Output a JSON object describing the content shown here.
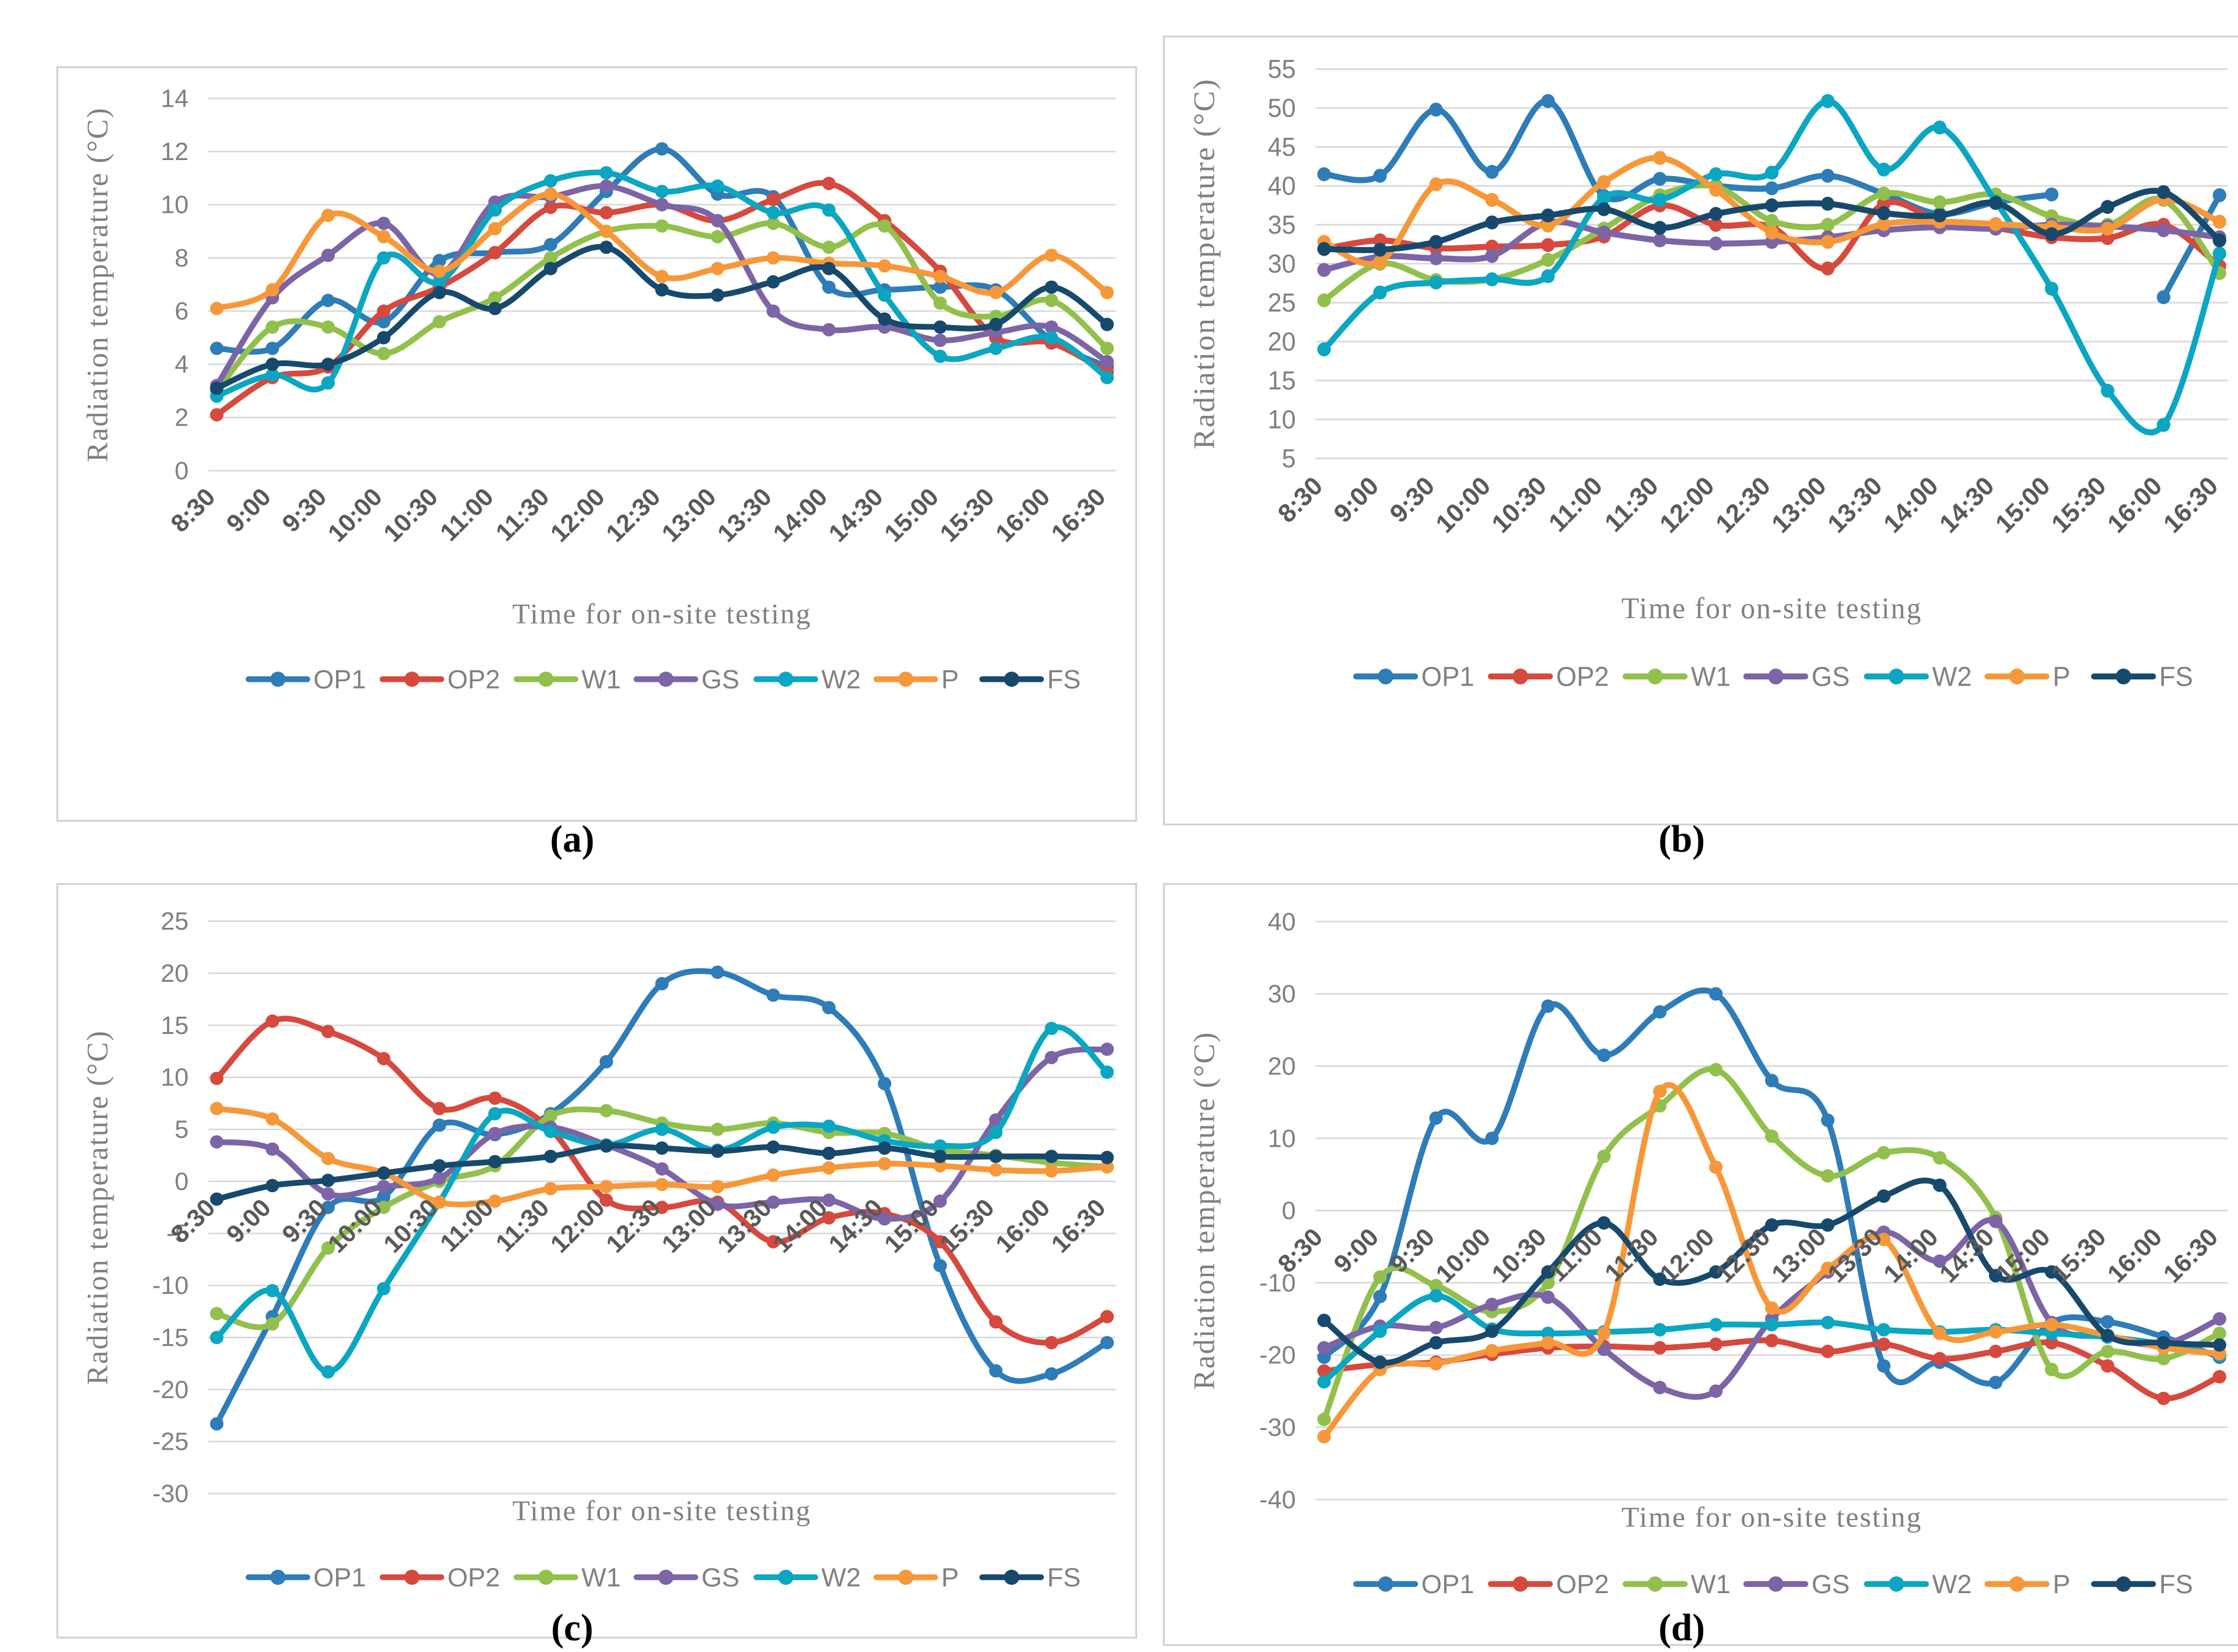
{
  "figure": {
    "ylabel": "Radiation temperature (°C)",
    "xlabel": "Time for on-site testing",
    "legend": [
      "OP1",
      "OP2",
      "W1",
      "GS",
      "W2",
      "P",
      "FS"
    ],
    "palette": {
      "OP1": "#2e7cb8",
      "OP2": "#d6493e",
      "W1": "#92c04c",
      "GS": "#7c64a6",
      "W2": "#0ba6c1",
      "P": "#f6983a",
      "FS": "#17496d"
    },
    "theme": {
      "grid": "#d9d9d9",
      "ytick_text": "#7f7f7f",
      "xtick_text": "#595959",
      "axis_title_text": "#7f7f7f",
      "legend_text": "#808080",
      "panel_border": "#d2d2d2",
      "caption_text": "#000000",
      "background": "#ffffff"
    }
  },
  "chart_data": [
    {
      "type": "line",
      "title": "(a)",
      "xlabel": "Time for on-site testing",
      "ylabel": "Radiation temperature (°C)",
      "ylim": [
        0,
        14
      ],
      "ytick_step": 2,
      "grid": true,
      "smoothed": true,
      "markers": true,
      "legend_position": "bottom",
      "x_labels_at": "below",
      "x": [
        "8:30",
        "9:00",
        "9:30",
        "10:00",
        "10:30",
        "11:00",
        "11:30",
        "12:00",
        "12:30",
        "13:00",
        "13:30",
        "14:00",
        "14:30",
        "15:00",
        "15:30",
        "16:00",
        "16:30"
      ],
      "series": [
        {
          "name": "OP1",
          "color": "#2e7cb8",
          "values": [
            4.6,
            4.6,
            6.4,
            5.6,
            7.9,
            8.2,
            8.5,
            10.5,
            12.1,
            10.4,
            10.3,
            6.9,
            6.8,
            6.9,
            6.8,
            4.9,
            3.9
          ]
        },
        {
          "name": "OP2",
          "color": "#d6493e",
          "values": [
            2.1,
            3.5,
            3.9,
            6.0,
            6.9,
            8.2,
            9.9,
            9.7,
            10.0,
            9.4,
            10.2,
            10.8,
            9.4,
            7.5,
            5.0,
            4.8,
            3.7
          ]
        },
        {
          "name": "W1",
          "color": "#92c04c",
          "values": [
            3.0,
            5.4,
            5.4,
            4.4,
            5.6,
            6.5,
            8.0,
            9.0,
            9.2,
            8.8,
            9.3,
            8.4,
            9.2,
            6.3,
            5.8,
            6.4,
            4.6
          ]
        },
        {
          "name": "GS",
          "color": "#7c64a6",
          "values": [
            3.2,
            6.5,
            8.1,
            9.3,
            7.4,
            10.1,
            10.3,
            10.7,
            10.0,
            9.4,
            6.0,
            5.3,
            5.4,
            4.9,
            5.2,
            5.4,
            4.1
          ]
        },
        {
          "name": "W2",
          "color": "#0ba6c1",
          "values": [
            2.8,
            3.6,
            3.3,
            8.0,
            7.1,
            9.8,
            10.9,
            11.2,
            10.5,
            10.7,
            9.7,
            9.8,
            6.6,
            4.3,
            4.6,
            5.0,
            3.5
          ]
        },
        {
          "name": "P",
          "color": "#f6983a",
          "values": [
            6.1,
            6.8,
            9.6,
            8.8,
            7.5,
            9.1,
            10.4,
            9.0,
            7.3,
            7.6,
            8.0,
            7.8,
            7.7,
            7.3,
            6.7,
            8.1,
            6.7
          ]
        },
        {
          "name": "FS",
          "color": "#17496d",
          "values": [
            3.1,
            4.0,
            4.0,
            5.0,
            6.7,
            6.1,
            7.6,
            8.4,
            6.8,
            6.6,
            7.1,
            7.6,
            5.7,
            5.4,
            5.5,
            6.9,
            5.5
          ]
        }
      ]
    },
    {
      "type": "line",
      "title": "(b)",
      "xlabel": "Time for on-site testing",
      "ylabel": "Radiation temperature (°C)",
      "ylim": [
        5,
        55
      ],
      "ytick_step": 5,
      "grid": true,
      "smoothed": true,
      "markers": true,
      "legend_position": "bottom",
      "x_labels_at": "below",
      "x": [
        "8:30",
        "9:00",
        "9:30",
        "10:00",
        "10:30",
        "11:00",
        "11:30",
        "12:00",
        "12:30",
        "13:00",
        "13:30",
        "14:00",
        "14:30",
        "15:00",
        "15:30",
        "16:00",
        "16:30"
      ],
      "series": [
        {
          "name": "OP1",
          "color": "#2e7cb8",
          "values": [
            41.5,
            41.3,
            49.8,
            41.8,
            50.9,
            38.7,
            40.9,
            40.0,
            39.7,
            41.3,
            39.0,
            36.4,
            37.9,
            38.9,
            null,
            25.7,
            38.8
          ]
        },
        {
          "name": "OP2",
          "color": "#d6493e",
          "values": [
            31.9,
            33.0,
            32.0,
            32.2,
            32.4,
            33.5,
            37.5,
            35.0,
            34.7,
            29.4,
            37.7,
            35.5,
            34.6,
            33.4,
            33.3,
            35.0,
            29.7
          ]
        },
        {
          "name": "W1",
          "color": "#92c04c",
          "values": [
            25.3,
            30.0,
            27.9,
            28.0,
            30.5,
            34.5,
            38.8,
            39.9,
            35.5,
            35.0,
            39.0,
            37.9,
            38.9,
            36.1,
            35.0,
            38.2,
            28.8
          ]
        },
        {
          "name": "GS",
          "color": "#7c64a6",
          "values": [
            29.2,
            30.9,
            30.7,
            31.0,
            35.3,
            34.0,
            33.0,
            32.6,
            32.8,
            33.4,
            34.3,
            34.7,
            34.5,
            35.0,
            34.8,
            34.3,
            33.4
          ]
        },
        {
          "name": "W2",
          "color": "#0ba6c1",
          "values": [
            19.0,
            26.3,
            27.6,
            28.0,
            28.4,
            38.5,
            38.2,
            41.5,
            41.7,
            50.9,
            42.1,
            47.5,
            38.0,
            26.8,
            13.7,
            9.3,
            31.3
          ]
        },
        {
          "name": "P",
          "color": "#f6983a",
          "values": [
            32.8,
            30.2,
            40.2,
            38.2,
            34.9,
            40.5,
            43.6,
            39.5,
            34.0,
            32.8,
            35.1,
            35.4,
            35.1,
            34.7,
            34.5,
            38.3,
            35.4
          ]
        },
        {
          "name": "FS",
          "color": "#17496d",
          "values": [
            31.9,
            31.8,
            32.8,
            35.3,
            36.2,
            37.0,
            34.6,
            36.4,
            37.5,
            37.7,
            36.5,
            36.2,
            37.8,
            33.8,
            37.3,
            39.2,
            33.0
          ]
        }
      ]
    },
    {
      "type": "line",
      "title": "(c)",
      "xlabel": "Time for on-site testing",
      "ylabel": "Radiation temperature (°C)",
      "ylim": [
        -30,
        25
      ],
      "ytick_step": 5,
      "grid": true,
      "smoothed": true,
      "markers": true,
      "legend_position": "bottom",
      "x_labels_at": "zero",
      "x": [
        "8:30",
        "9:00",
        "9:30",
        "10:00",
        "10:30",
        "11:00",
        "11:30",
        "12:00",
        "12:30",
        "13:00",
        "13:30",
        "14:00",
        "14:30",
        "15:00",
        "15:30",
        "16:00",
        "16:30"
      ],
      "series": [
        {
          "name": "OP1",
          "color": "#2e7cb8",
          "values": [
            -23.3,
            -13.0,
            -2.5,
            -1.5,
            5.4,
            4.5,
            6.5,
            11.5,
            19.0,
            20.1,
            17.9,
            16.7,
            9.4,
            -8.1,
            -18.2,
            -18.5,
            -15.5
          ]
        },
        {
          "name": "OP2",
          "color": "#d6493e",
          "values": [
            9.9,
            15.4,
            14.4,
            11.8,
            7.0,
            8.0,
            5.0,
            -1.8,
            -2.5,
            -2.0,
            -5.8,
            -3.5,
            -3.1,
            -5.8,
            -13.5,
            -15.5,
            -13.0
          ]
        },
        {
          "name": "W1",
          "color": "#92c04c",
          "values": [
            -12.7,
            -13.7,
            -6.4,
            -2.5,
            0.0,
            1.5,
            6.3,
            6.8,
            5.6,
            5.0,
            5.6,
            4.7,
            4.6,
            3.1,
            2.5,
            1.8,
            1.4
          ]
        },
        {
          "name": "GS",
          "color": "#7c64a6",
          "values": [
            3.8,
            3.1,
            -1.2,
            -0.5,
            0.3,
            4.6,
            5.2,
            3.5,
            1.2,
            -2.2,
            -2.0,
            -1.8,
            -3.6,
            -1.9,
            5.9,
            11.9,
            12.7
          ]
        },
        {
          "name": "W2",
          "color": "#0ba6c1",
          "values": [
            -15.0,
            -10.5,
            -18.3,
            -10.3,
            -2.0,
            6.5,
            4.8,
            3.5,
            5.0,
            3.0,
            5.2,
            5.3,
            3.9,
            3.4,
            4.7,
            14.7,
            10.5
          ]
        },
        {
          "name": "P",
          "color": "#f6983a",
          "values": [
            7.0,
            6.0,
            2.2,
            0.8,
            -2.0,
            -1.9,
            -0.7,
            -0.5,
            -0.3,
            -0.5,
            0.6,
            1.3,
            1.7,
            1.5,
            1.1,
            1.0,
            1.4
          ]
        },
        {
          "name": "FS",
          "color": "#17496d",
          "values": [
            -1.7,
            -0.4,
            0.1,
            0.8,
            1.5,
            1.9,
            2.4,
            3.4,
            3.2,
            2.9,
            3.3,
            2.7,
            3.2,
            2.4,
            2.4,
            2.4,
            2.3
          ]
        }
      ]
    },
    {
      "type": "line",
      "title": "(d)",
      "xlabel": "Time for on-site testing",
      "ylabel": "Radiation temperature (°C)",
      "ylim": [
        -40,
        40
      ],
      "ytick_step": 10,
      "grid": true,
      "smoothed": true,
      "markers": true,
      "legend_position": "bottom",
      "x_labels_at": "zero",
      "x": [
        "8:30",
        "9:00",
        "9:30",
        "10:00",
        "10:30",
        "11:00",
        "11:30",
        "12:00",
        "12:30",
        "13:00",
        "13:30",
        "14:00",
        "14:30",
        "15:00",
        "15:30",
        "16:00",
        "16:30"
      ],
      "series": [
        {
          "name": "OP1",
          "color": "#2e7cb8",
          "values": [
            -20.3,
            -11.9,
            12.8,
            10.0,
            28.3,
            21.5,
            27.5,
            30.0,
            18.0,
            12.5,
            -21.5,
            -21.0,
            -23.8,
            -15.5,
            -15.4,
            -17.5,
            -20.3
          ]
        },
        {
          "name": "OP2",
          "color": "#d6493e",
          "values": [
            -22.2,
            -21.3,
            -21.0,
            -19.9,
            -19.0,
            -18.8,
            -19.0,
            -18.5,
            -18.0,
            -19.5,
            -18.5,
            -20.5,
            -19.5,
            -18.3,
            -21.5,
            -26.0,
            -23.0
          ]
        },
        {
          "name": "W1",
          "color": "#92c04c",
          "values": [
            -28.9,
            -9.2,
            -10.4,
            -14.0,
            -10.0,
            7.5,
            14.5,
            19.5,
            10.3,
            4.8,
            8.0,
            7.3,
            -1.0,
            -22.0,
            -19.5,
            -20.5,
            -17.0
          ]
        },
        {
          "name": "GS",
          "color": "#7c64a6",
          "values": [
            -19.0,
            -16.0,
            -16.2,
            -13.0,
            -12.0,
            -19.2,
            -24.5,
            -25.0,
            -15.0,
            -8.5,
            -3.0,
            -7.0,
            -1.5,
            -15.5,
            -17.5,
            -18.5,
            -15.0
          ]
        },
        {
          "name": "W2",
          "color": "#0ba6c1",
          "values": [
            -23.7,
            -16.7,
            -11.8,
            -16.4,
            -17.0,
            -16.8,
            -16.5,
            -15.8,
            -15.8,
            -15.5,
            -16.5,
            -16.8,
            -16.5,
            -17.0,
            -17.5,
            -18.5,
            -20.0
          ]
        },
        {
          "name": "P",
          "color": "#f6983a",
          "values": [
            -31.3,
            -22.0,
            -21.2,
            -19.4,
            -18.3,
            -17.0,
            16.5,
            6.0,
            -13.5,
            -8.0,
            -4.0,
            -17.0,
            -16.8,
            -15.8,
            -17.3,
            -19.0,
            -19.8
          ]
        },
        {
          "name": "FS",
          "color": "#17496d",
          "values": [
            -15.2,
            -21.0,
            -18.3,
            -16.7,
            -8.5,
            -1.7,
            -9.5,
            -8.5,
            -2.0,
            -2.0,
            2.0,
            3.5,
            -9.0,
            -8.5,
            -17.3,
            -18.3,
            -18.6
          ]
        }
      ]
    }
  ]
}
